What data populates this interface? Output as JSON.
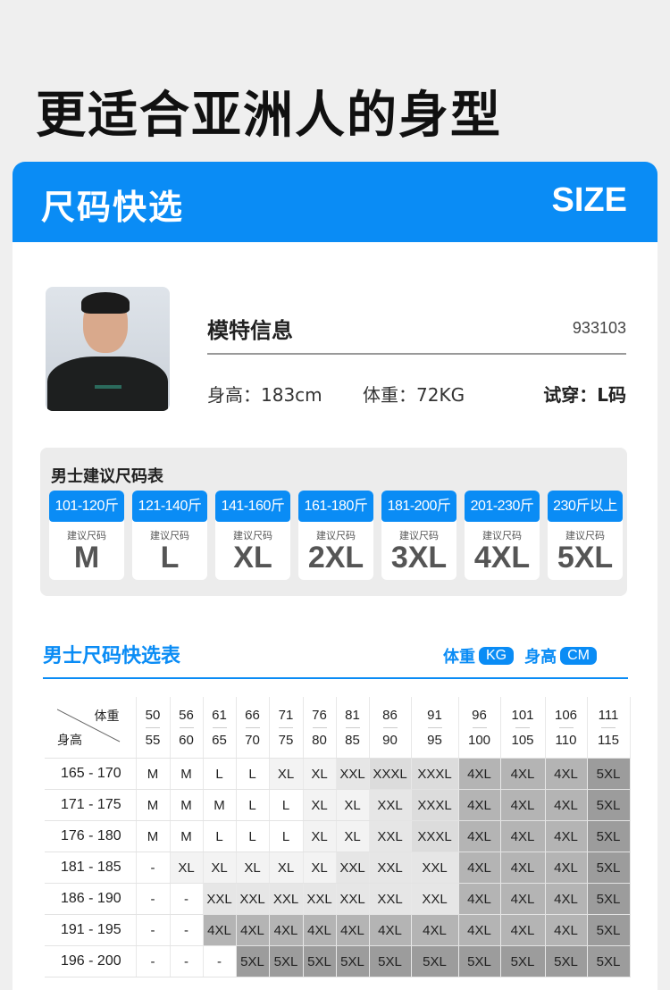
{
  "title": "更适合亚洲人的身型",
  "header": {
    "left": "尺码快选",
    "right": "SIZE",
    "color": "#0a8cf5"
  },
  "model": {
    "title": "模特信息",
    "code": "933103",
    "height": "身高：183cm",
    "weight": "体重：72KG",
    "tryon": "试穿：L码"
  },
  "suggest": {
    "title": "男士建议尺码表",
    "sub": "建议尺码",
    "items": [
      {
        "range": "101-120斤",
        "size": "M"
      },
      {
        "range": "121-140斤",
        "size": "L"
      },
      {
        "range": "141-160斤",
        "size": "XL"
      },
      {
        "range": "161-180斤",
        "size": "2XL"
      },
      {
        "range": "181-200斤",
        "size": "3XL"
      },
      {
        "range": "201-230斤",
        "size": "4XL"
      },
      {
        "range": "230斤以上",
        "size": "5XL"
      }
    ]
  },
  "quick": {
    "title": "男士尺码快选表",
    "weight_label": "体重",
    "weight_unit": "KG",
    "height_label": "身高",
    "height_unit": "CM"
  },
  "table": {
    "corner_weight": "体重",
    "corner_height": "身高",
    "columns": [
      [
        "50",
        "55"
      ],
      [
        "56",
        "60"
      ],
      [
        "61",
        "65"
      ],
      [
        "66",
        "70"
      ],
      [
        "71",
        "75"
      ],
      [
        "76",
        "80"
      ],
      [
        "81",
        "85"
      ],
      [
        "86",
        "90"
      ],
      [
        "91",
        "95"
      ],
      [
        "96",
        "100"
      ],
      [
        "101",
        "105"
      ],
      [
        "106",
        "110"
      ],
      [
        "111",
        "115"
      ]
    ],
    "shade_colors": {
      "-": "#ffffff",
      "M": "#ffffff",
      "L": "#ffffff",
      "XL": "#f3f3f3",
      "XXL": "#e6e6e6",
      "XXXL": "#dcdcdc",
      "4XL": "#b4b4b4",
      "5XL": "#9c9c9c"
    },
    "rows": [
      {
        "height": "165 - 170",
        "cells": [
          "M",
          "M",
          "L",
          "L",
          "XL",
          "XL",
          "XXL",
          "XXXL",
          "XXXL",
          "4XL",
          "4XL",
          "4XL",
          "5XL"
        ]
      },
      {
        "height": "171 - 175",
        "cells": [
          "M",
          "M",
          "M",
          "L",
          "L",
          "XL",
          "XL",
          "XXL",
          "XXXL",
          "4XL",
          "4XL",
          "4XL",
          "5XL"
        ]
      },
      {
        "height": "176 - 180",
        "cells": [
          "M",
          "M",
          "L",
          "L",
          "L",
          "XL",
          "XL",
          "XXL",
          "XXXL",
          "4XL",
          "4XL",
          "4XL",
          "5XL"
        ]
      },
      {
        "height": "181 - 185",
        "cells": [
          "-",
          "XL",
          "XL",
          "XL",
          "XL",
          "XL",
          "XXL",
          "XXL",
          "XXL",
          "4XL",
          "4XL",
          "4XL",
          "5XL"
        ]
      },
      {
        "height": "186 - 190",
        "cells": [
          "-",
          "-",
          "XXL",
          "XXL",
          "XXL",
          "XXL",
          "XXL",
          "XXL",
          "XXL",
          "4XL",
          "4XL",
          "4XL",
          "5XL"
        ]
      },
      {
        "height": "191 - 195",
        "cells": [
          "-",
          "-",
          "4XL",
          "4XL",
          "4XL",
          "4XL",
          "4XL",
          "4XL",
          "4XL",
          "4XL",
          "4XL",
          "4XL",
          "5XL"
        ]
      },
      {
        "height": "196 - 200",
        "cells": [
          "-",
          "-",
          "-",
          "5XL",
          "5XL",
          "5XL",
          "5XL",
          "5XL",
          "5XL",
          "5XL",
          "5XL",
          "5XL",
          "5XL"
        ]
      }
    ]
  }
}
